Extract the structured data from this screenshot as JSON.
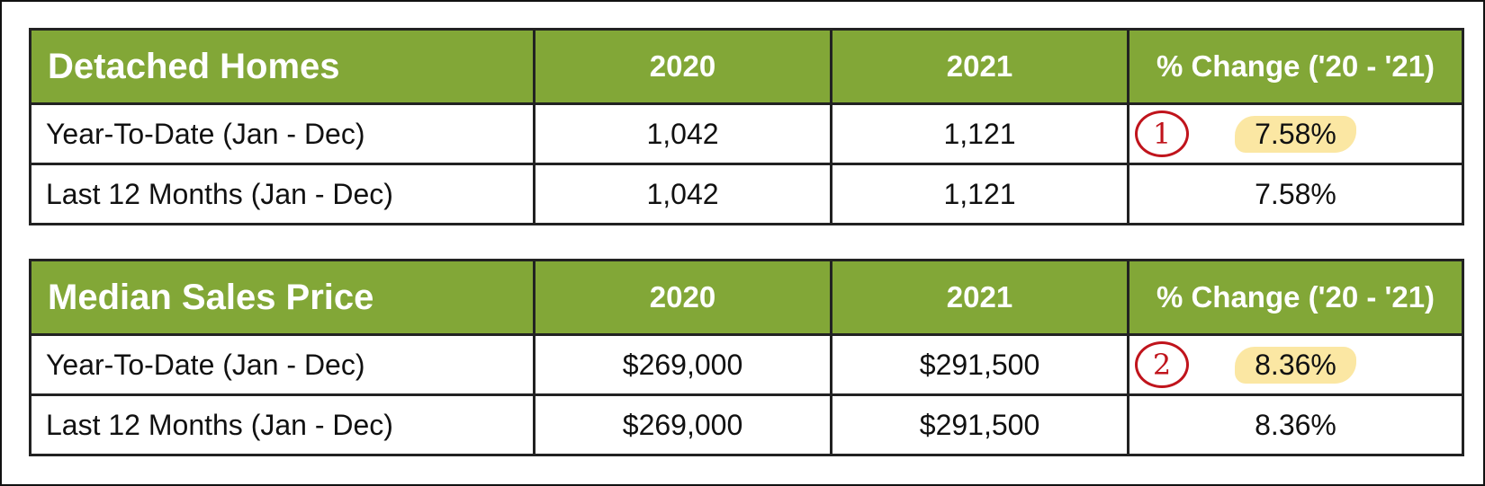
{
  "tables": [
    {
      "title": "Detached Homes",
      "columns": [
        "2020",
        "2021",
        "% Change ('20 - '21)"
      ],
      "rows": [
        {
          "label": "Year-To-Date (Jan - Dec)",
          "y2020": "1,042",
          "y2021": "1,121",
          "change": "7.58%",
          "annotation": "1",
          "highlighted": true
        },
        {
          "label": "Last 12 Months (Jan - Dec)",
          "y2020": "1,042",
          "y2021": "1,121",
          "change": "7.58%"
        }
      ]
    },
    {
      "title": "Median Sales Price",
      "columns": [
        "2020",
        "2021",
        "% Change ('20 - '21)"
      ],
      "rows": [
        {
          "label": "Year-To-Date (Jan - Dec)",
          "y2020": "$269,000",
          "y2021": "$291,500",
          "change": "8.36%",
          "annotation": "2",
          "highlighted": true
        },
        {
          "label": "Last 12 Months (Jan - Dec)",
          "y2020": "$269,000",
          "y2021": "$291,500",
          "change": "8.36%"
        }
      ]
    }
  ],
  "colors": {
    "header_bg": "#82a737",
    "header_text": "#ffffff",
    "highlight": "#fbe7a3",
    "annotation": "#c0141c",
    "border": "#222222"
  }
}
